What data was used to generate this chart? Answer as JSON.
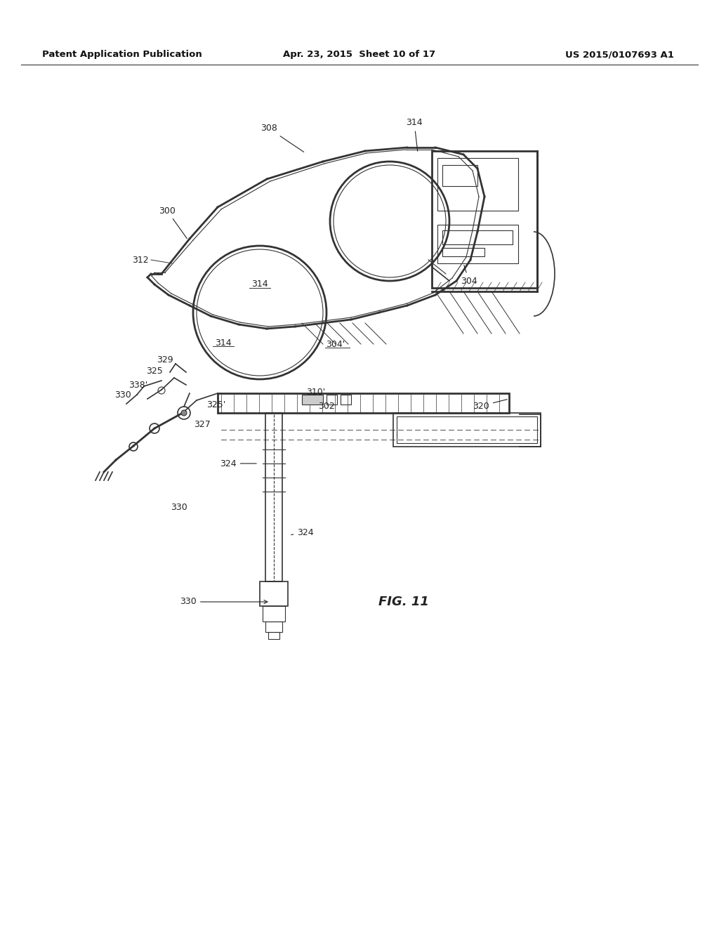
{
  "header_left": "Patent Application Publication",
  "header_center": "Apr. 23, 2015  Sheet 10 of 17",
  "header_right": "US 2015/0107693 A1",
  "fig_label": "FIG. 11",
  "bg_color": "#ffffff",
  "line_color": "#333333",
  "label_color": "#222222"
}
